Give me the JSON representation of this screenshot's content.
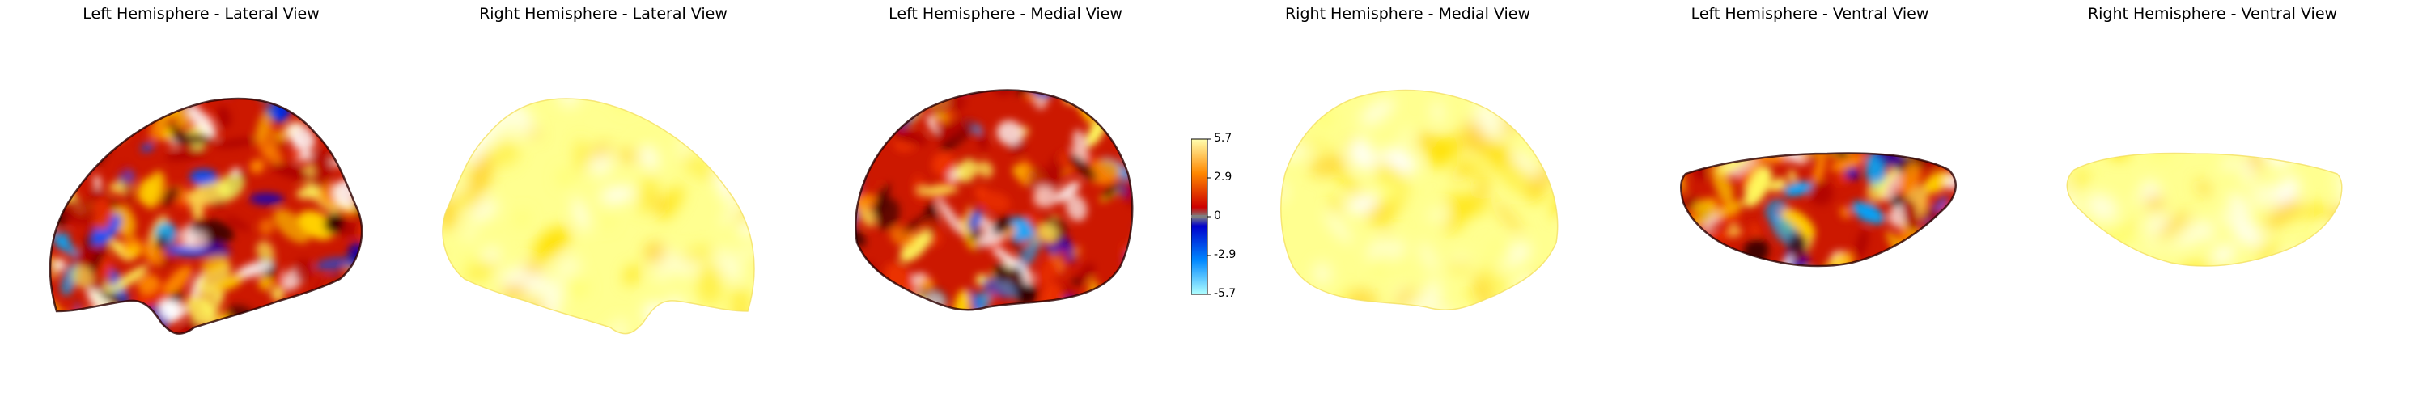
{
  "panels": [
    {
      "title": "Left Hemisphere - Lateral View",
      "view": "lateral",
      "hemisphere": "left",
      "palette": "mixed"
    },
    {
      "title": "Right Hemisphere - Lateral View",
      "view": "lateral",
      "hemisphere": "right",
      "palette": "pale"
    },
    {
      "title": "Left Hemisphere - Medial View",
      "view": "medial",
      "hemisphere": "left",
      "palette": "mixed"
    },
    {
      "title": "Right Hemisphere - Medial View",
      "view": "medial",
      "hemisphere": "right",
      "palette": "pale"
    },
    {
      "title": "Left Hemisphere - Ventral View",
      "view": "ventral",
      "hemisphere": "left",
      "palette": "mixed"
    },
    {
      "title": "Right Hemisphere - Ventral View",
      "view": "ventral",
      "hemisphere": "right",
      "palette": "pale"
    }
  ],
  "colorbar": {
    "ticks": [
      "5.7",
      "2.9",
      "0",
      "-2.9",
      "-5.7"
    ],
    "colors": {
      "top": "#ffffb0",
      "upper_mid": "#ff8800",
      "upper_low": "#cc0000",
      "center": "#7f7f7f",
      "lower_low": "#0000cc",
      "lower_mid": "#0088ff",
      "bottom": "#b0ffff"
    }
  }
}
